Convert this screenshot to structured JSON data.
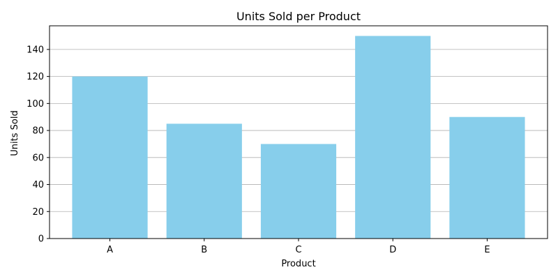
{
  "chart_data": {
    "type": "bar",
    "title": "Units Sold per Product",
    "xlabel": "Product",
    "ylabel": "Units Sold",
    "categories": [
      "A",
      "B",
      "C",
      "D",
      "E"
    ],
    "values": [
      120,
      85,
      70,
      150,
      90
    ],
    "ylim": [
      0,
      157.5
    ],
    "yticks": [
      0,
      20,
      40,
      60,
      80,
      100,
      120,
      140
    ],
    "grid": "y-major",
    "legend": "none",
    "bar_color": "#87ceeb",
    "grid_color": "#b0b0b0",
    "axis_color": "#000000"
  }
}
